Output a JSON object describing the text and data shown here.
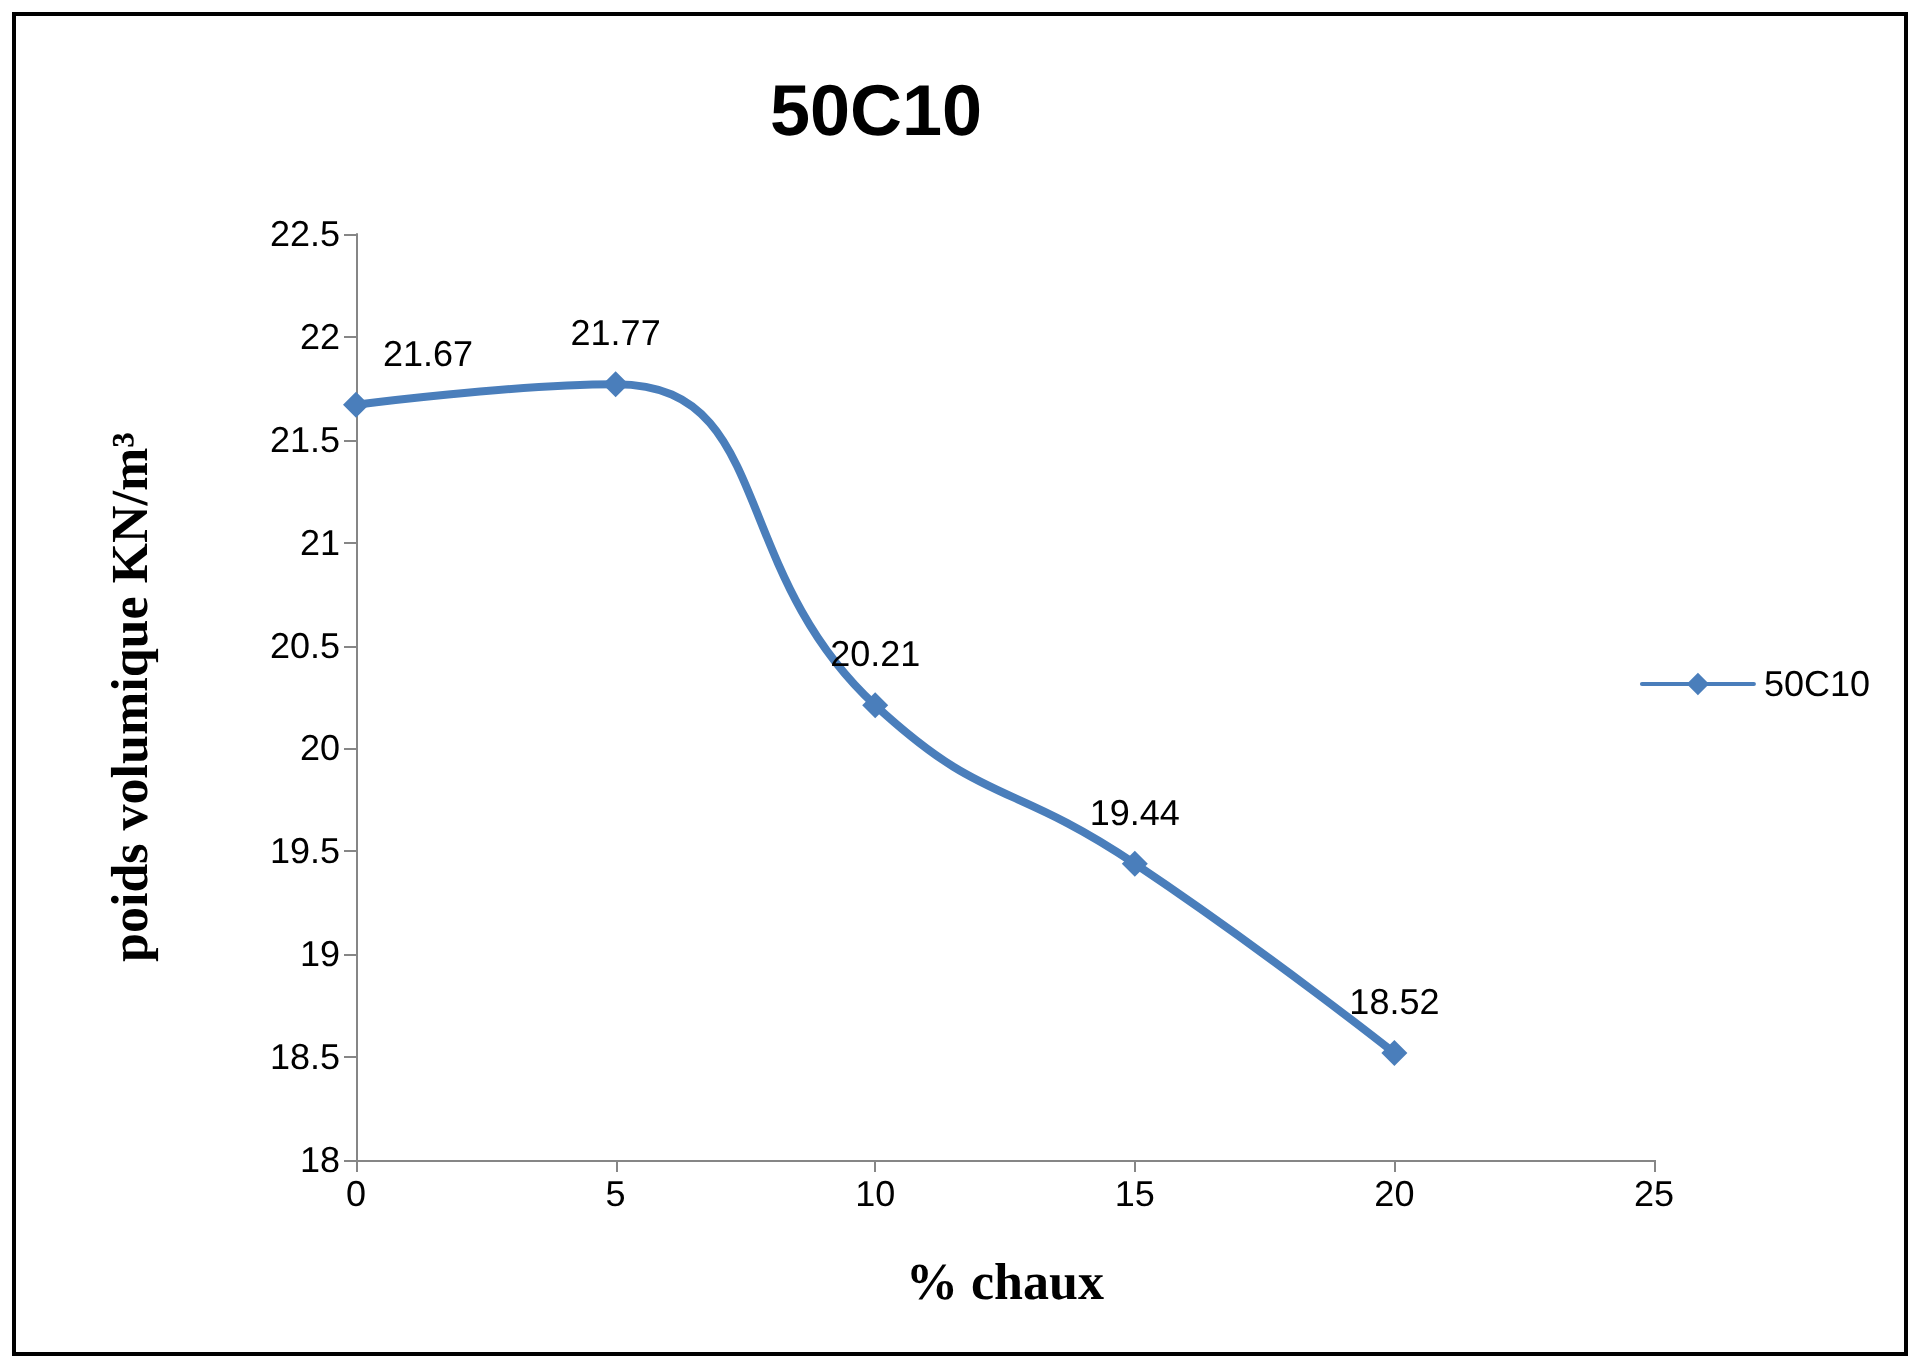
{
  "chart_data": {
    "type": "line",
    "title": "50C10",
    "xlabel": "% chaux",
    "ylabel": "poids volumique KN/m³",
    "x": [
      0,
      5,
      10,
      15,
      20
    ],
    "series": [
      {
        "name": "50C10",
        "color": "#4a7ebb",
        "values": [
          21.67,
          21.77,
          20.21,
          19.44,
          18.52
        ]
      }
    ],
    "xlim": [
      0,
      25
    ],
    "xticks": [
      0,
      5,
      10,
      15,
      20,
      25
    ],
    "ylim": [
      18,
      22.5
    ],
    "yticks": [
      18,
      18.5,
      19,
      19.5,
      20,
      20.5,
      21,
      21.5,
      22,
      22.5
    ],
    "grid": false,
    "legend": "right",
    "marker": "diamond",
    "line_style": "solid",
    "data_labels": true
  }
}
